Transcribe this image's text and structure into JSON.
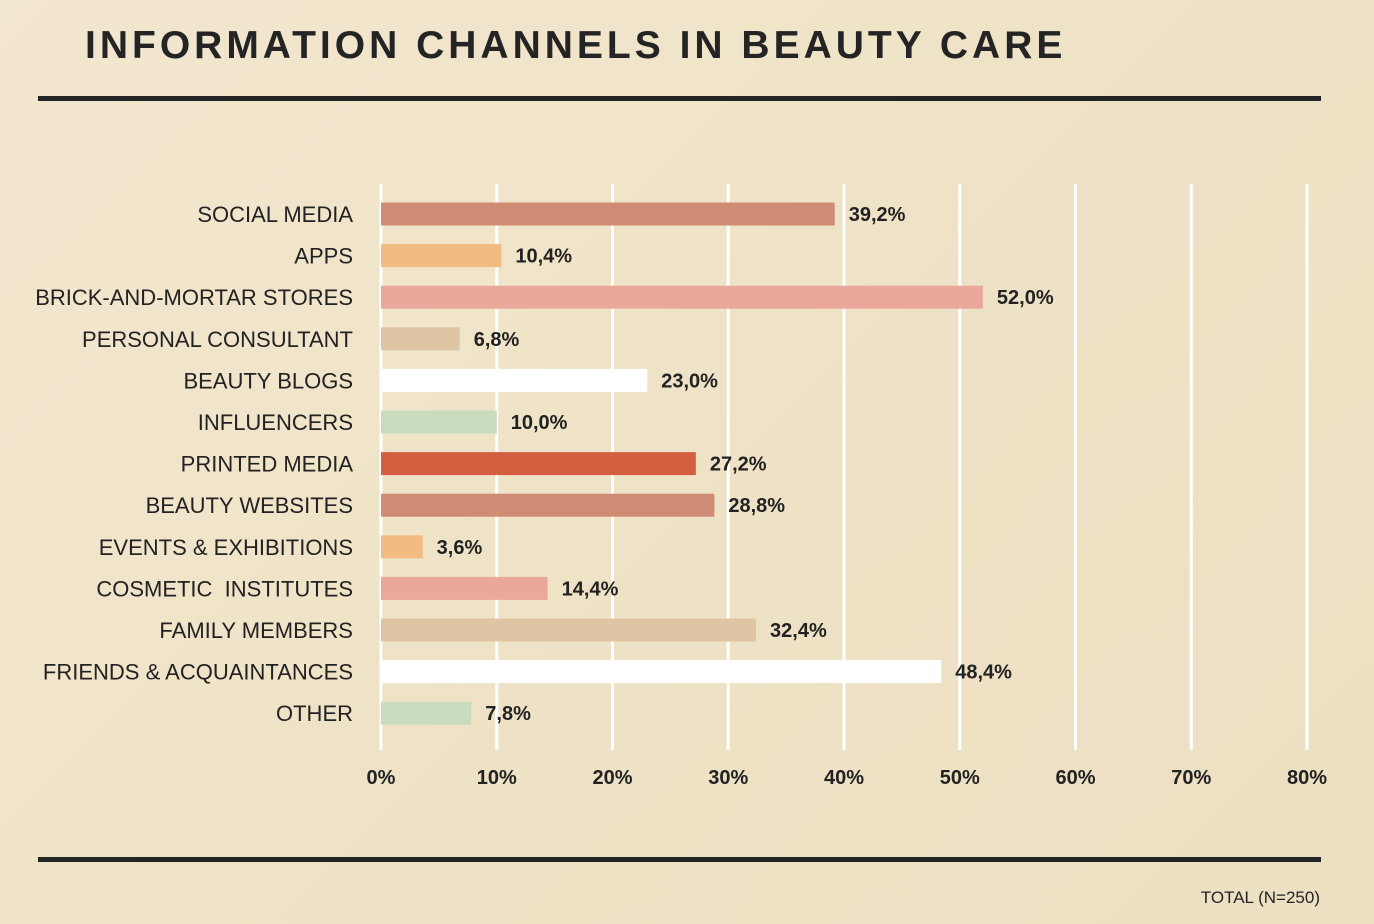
{
  "chart_data": {
    "type": "bar",
    "orientation": "horizontal",
    "title": "INFORMATION CHANNELS IN BEAUTY CARE",
    "footnote": "TOTAL (N=250)",
    "xlim": [
      0,
      80
    ],
    "xticks": [
      0,
      10,
      20,
      30,
      40,
      50,
      60,
      70,
      80
    ],
    "xtick_labels": [
      "0%",
      "10%",
      "20%",
      "30%",
      "40%",
      "50%",
      "60%",
      "70%",
      "80%"
    ],
    "grid": true,
    "xlabel": "",
    "ylabel": "",
    "categories": [
      "SOCIAL MEDIA",
      "APPS",
      "BRICK-AND-MORTAR STORES",
      "PERSONAL CONSULTANT",
      "BEAUTY BLOGS",
      "INFLUENCERS",
      "PRINTED MEDIA",
      "BEAUTY WEBSITES",
      "EVENTS & EXHIBITIONS",
      "COSMETIC  INSTITUTES",
      "FAMILY MEMBERS",
      "FRIENDS & ACQUAINTANCES",
      "OTHER"
    ],
    "values": [
      39.2,
      10.4,
      52.0,
      6.8,
      23.0,
      10.0,
      27.2,
      28.8,
      3.6,
      14.4,
      32.4,
      48.4,
      7.8
    ],
    "value_labels": [
      "39,2%",
      "10,4%",
      "52,0%",
      "6,8%",
      "23,0%",
      "10,0%",
      "27,2%",
      "28,8%",
      "3,6%",
      "14,4%",
      "32,4%",
      "48,4%",
      "7,8%"
    ],
    "bar_colors": [
      "#cf8b73",
      "#f2bb82",
      "#eaa89c",
      "#dec5a4",
      "#ffffff",
      "#c9dcbd",
      "#d45e40",
      "#cf8b73",
      "#f2bb82",
      "#eaa89c",
      "#dec5a4",
      "#ffffff",
      "#c9dcbd"
    ]
  },
  "colors": {
    "background": "#efe3c8",
    "text": "#222222",
    "rule": "#242424",
    "grid": "#ffffff"
  }
}
